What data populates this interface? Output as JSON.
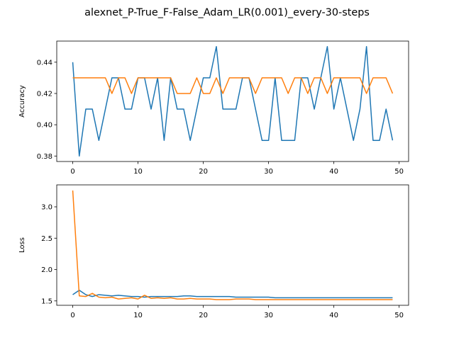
{
  "figure": {
    "title": "alexnet_P-True_F-False_Adam_LR(0.001)_every-30-steps"
  },
  "colors": {
    "series_a": "#1f77b4",
    "series_b": "#ff7f0e"
  },
  "chart_data": [
    {
      "type": "line",
      "title": "",
      "xlabel": "",
      "ylabel": "Accuracy",
      "xlim": [
        -2.45,
        51.45
      ],
      "ylim": [
        0.3765,
        0.4535
      ],
      "xticks": [
        0,
        10,
        20,
        30,
        40,
        50
      ],
      "yticks": [
        0.38,
        0.4,
        0.42,
        0.44
      ],
      "ytick_labels": [
        "0.38",
        "0.40",
        "0.42",
        "0.44"
      ],
      "grid": false,
      "x": [
        0,
        1,
        2,
        3,
        4,
        5,
        6,
        7,
        8,
        9,
        10,
        11,
        12,
        13,
        14,
        15,
        16,
        17,
        18,
        19,
        20,
        21,
        22,
        23,
        24,
        25,
        26,
        27,
        28,
        29,
        30,
        31,
        32,
        33,
        34,
        35,
        36,
        37,
        38,
        39,
        40,
        41,
        42,
        43,
        44,
        45,
        46,
        47,
        48,
        49
      ],
      "series": [
        {
          "color_key": "series_a",
          "values": [
            0.44,
            0.38,
            0.41,
            0.41,
            0.39,
            0.41,
            0.43,
            0.43,
            0.41,
            0.41,
            0.43,
            0.43,
            0.41,
            0.43,
            0.39,
            0.43,
            0.41,
            0.41,
            0.39,
            0.41,
            0.43,
            0.43,
            0.45,
            0.41,
            0.41,
            0.41,
            0.43,
            0.43,
            0.41,
            0.39,
            0.39,
            0.43,
            0.39,
            0.39,
            0.39,
            0.43,
            0.43,
            0.41,
            0.43,
            0.45,
            0.41,
            0.43,
            0.41,
            0.39,
            0.41,
            0.45,
            0.39,
            0.39,
            0.41,
            0.39
          ]
        },
        {
          "color_key": "series_b",
          "values": [
            0.43,
            0.43,
            0.43,
            0.43,
            0.43,
            0.43,
            0.42,
            0.43,
            0.43,
            0.42,
            0.43,
            0.43,
            0.43,
            0.43,
            0.43,
            0.43,
            0.42,
            0.42,
            0.42,
            0.43,
            0.42,
            0.42,
            0.43,
            0.42,
            0.43,
            0.43,
            0.43,
            0.43,
            0.42,
            0.43,
            0.43,
            0.43,
            0.43,
            0.42,
            0.43,
            0.43,
            0.42,
            0.43,
            0.43,
            0.42,
            0.43,
            0.43,
            0.43,
            0.43,
            0.43,
            0.42,
            0.43,
            0.43,
            0.43,
            0.42
          ]
        }
      ]
    },
    {
      "type": "line",
      "title": "",
      "xlabel": "",
      "ylabel": "Loss",
      "xlim": [
        -2.45,
        51.45
      ],
      "ylim": [
        1.43,
        3.35
      ],
      "xticks": [
        0,
        10,
        20,
        30,
        40,
        50
      ],
      "yticks": [
        1.5,
        2.0,
        2.5,
        3.0
      ],
      "ytick_labels": [
        "1.5",
        "2.0",
        "2.5",
        "3.0"
      ],
      "grid": false,
      "x": [
        0,
        1,
        2,
        3,
        4,
        5,
        6,
        7,
        8,
        9,
        10,
        11,
        12,
        13,
        14,
        15,
        16,
        17,
        18,
        19,
        20,
        21,
        22,
        23,
        24,
        25,
        26,
        27,
        28,
        29,
        30,
        31,
        32,
        33,
        34,
        35,
        36,
        37,
        38,
        39,
        40,
        41,
        42,
        43,
        44,
        45,
        46,
        47,
        48,
        49
      ],
      "series": [
        {
          "color_key": "series_a",
          "values": [
            1.6,
            1.67,
            1.6,
            1.57,
            1.6,
            1.59,
            1.58,
            1.59,
            1.58,
            1.57,
            1.57,
            1.56,
            1.57,
            1.57,
            1.57,
            1.57,
            1.57,
            1.58,
            1.58,
            1.57,
            1.57,
            1.57,
            1.57,
            1.57,
            1.57,
            1.56,
            1.56,
            1.56,
            1.56,
            1.56,
            1.56,
            1.55,
            1.55,
            1.55,
            1.55,
            1.55,
            1.55,
            1.55,
            1.55,
            1.55,
            1.55,
            1.55,
            1.55,
            1.55,
            1.55,
            1.55,
            1.55,
            1.55,
            1.55,
            1.55
          ]
        },
        {
          "color_key": "series_b",
          "values": [
            3.26,
            1.58,
            1.57,
            1.62,
            1.56,
            1.55,
            1.56,
            1.53,
            1.54,
            1.55,
            1.53,
            1.59,
            1.54,
            1.55,
            1.54,
            1.55,
            1.53,
            1.53,
            1.54,
            1.53,
            1.53,
            1.53,
            1.52,
            1.52,
            1.52,
            1.53,
            1.53,
            1.53,
            1.52,
            1.52,
            1.52,
            1.52,
            1.52,
            1.52,
            1.52,
            1.52,
            1.52,
            1.52,
            1.52,
            1.52,
            1.52,
            1.52,
            1.52,
            1.52,
            1.52,
            1.52,
            1.52,
            1.52,
            1.52,
            1.52
          ]
        }
      ]
    }
  ]
}
